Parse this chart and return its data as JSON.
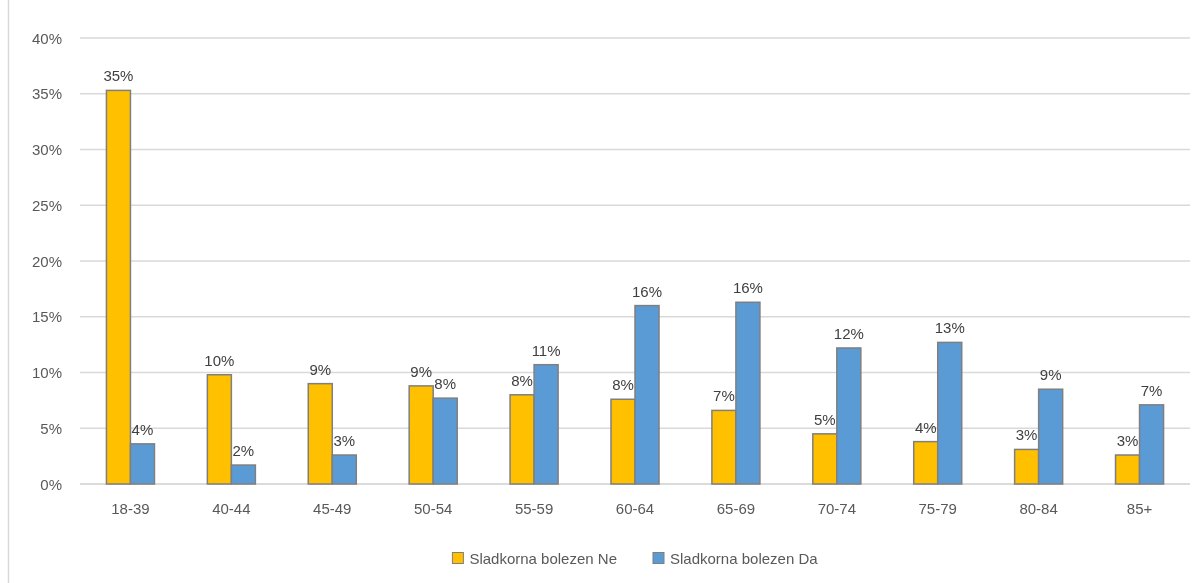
{
  "chart_data": {
    "type": "bar",
    "categories": [
      "18-39",
      "40-44",
      "45-49",
      "50-54",
      "55-59",
      "60-64",
      "65-69",
      "70-74",
      "75-79",
      "80-84",
      "85+"
    ],
    "series": [
      {
        "name": "Sladkorna bolezen Ne",
        "color": "#ffc000",
        "values": [
          35.3,
          9.8,
          9.0,
          8.8,
          8.0,
          7.6,
          6.6,
          4.5,
          3.8,
          3.1,
          2.6
        ],
        "value_labels": [
          "35%",
          "10%",
          "9%",
          "9%",
          "8%",
          "8%",
          "7%",
          "5%",
          "4%",
          "3%",
          "3%"
        ]
      },
      {
        "name": "Sladkorna bolezen Da",
        "color": "#5b9bd5",
        "values": [
          3.6,
          1.7,
          2.6,
          7.7,
          10.7,
          16.0,
          16.3,
          12.2,
          12.7,
          8.5,
          7.1
        ],
        "value_labels": [
          "4%",
          "2%",
          "3%",
          "8%",
          "11%",
          "16%",
          "16%",
          "12%",
          "13%",
          "9%",
          "7%"
        ]
      }
    ],
    "ylim": [
      0,
      40
    ],
    "yticks": [
      {
        "value": 0,
        "label": "0%"
      },
      {
        "value": 5,
        "label": "5%"
      },
      {
        "value": 10,
        "label": "10%"
      },
      {
        "value": 15,
        "label": "15%"
      },
      {
        "value": 20,
        "label": "20%"
      },
      {
        "value": 25,
        "label": "25%"
      },
      {
        "value": 30,
        "label": "30%"
      },
      {
        "value": 35,
        "label": "35%"
      },
      {
        "value": 40,
        "label": "40%"
      }
    ],
    "grid": "y",
    "legend": "bottom"
  }
}
